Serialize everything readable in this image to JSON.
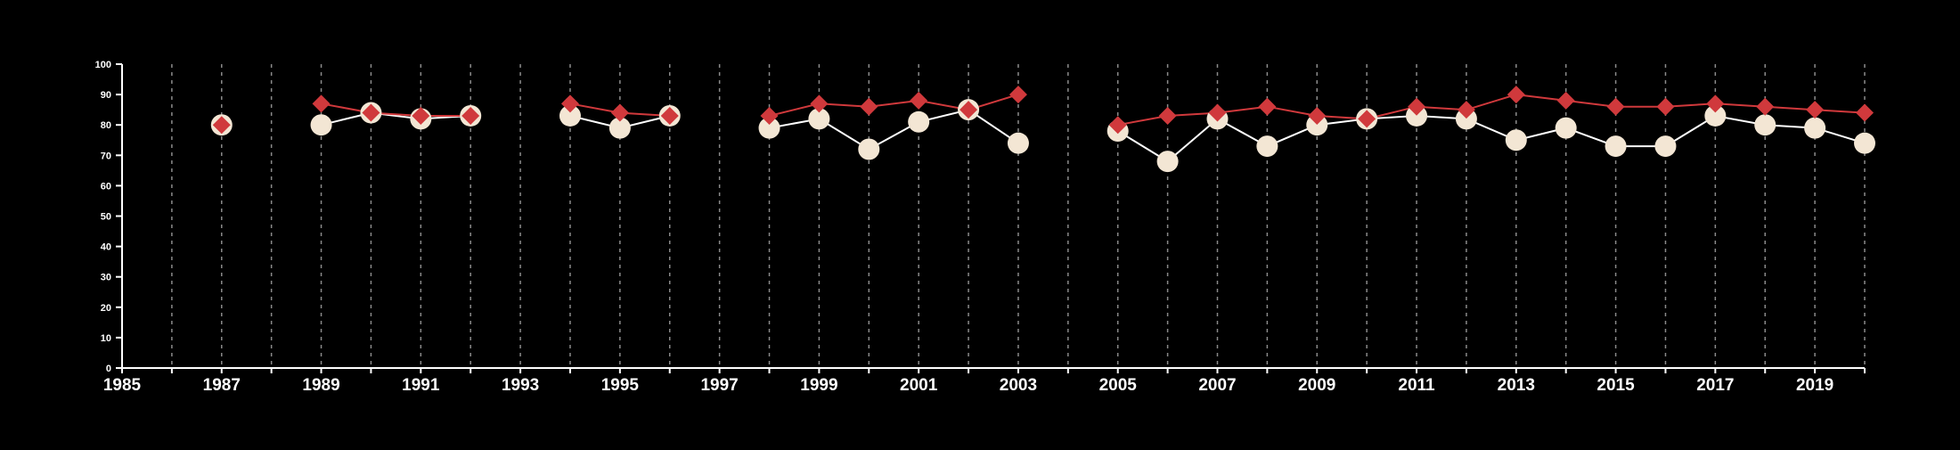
{
  "chart_data": {
    "type": "line",
    "title": "",
    "xlabel": "",
    "ylabel": "",
    "xlim": [
      1985,
      2020
    ],
    "ylim": [
      0,
      100
    ],
    "x_ticks": [
      1985,
      1987,
      1989,
      1991,
      1993,
      1995,
      1997,
      1999,
      2001,
      2003,
      2005,
      2007,
      2009,
      2011,
      2013,
      2015,
      2017,
      2019
    ],
    "y_ticks": [
      0,
      10,
      20,
      30,
      40,
      50,
      60,
      70,
      80,
      90,
      100
    ],
    "grid": "vertical dashed lines at every year",
    "legend": "none",
    "series": [
      {
        "marker": "circle",
        "color": "#f3e6d4",
        "line_color": "#ffffff",
        "points": [
          [
            1987,
            80
          ],
          [
            1989,
            80
          ],
          [
            1990,
            84
          ],
          [
            1991,
            82
          ],
          [
            1992,
            83
          ],
          [
            1994,
            83
          ],
          [
            1995,
            79
          ],
          [
            1996,
            83
          ],
          [
            1998,
            79
          ],
          [
            1999,
            82
          ],
          [
            2000,
            72
          ],
          [
            2001,
            81
          ],
          [
            2002,
            85
          ],
          [
            2003,
            74
          ],
          [
            2005,
            78
          ],
          [
            2006,
            68
          ],
          [
            2007,
            82
          ],
          [
            2008,
            73
          ],
          [
            2009,
            80
          ],
          [
            2010,
            82
          ],
          [
            2011,
            83
          ],
          [
            2012,
            82
          ],
          [
            2013,
            75
          ],
          [
            2014,
            79
          ],
          [
            2015,
            73
          ],
          [
            2016,
            73
          ],
          [
            2017,
            83
          ],
          [
            2018,
            80
          ],
          [
            2019,
            79
          ],
          [
            2020,
            74
          ]
        ]
      },
      {
        "marker": "diamond",
        "color": "#d0393c",
        "line_color": "#d0393c",
        "points": [
          [
            1987,
            80
          ],
          [
            1989,
            87
          ],
          [
            1990,
            84
          ],
          [
            1991,
            83
          ],
          [
            1992,
            83
          ],
          [
            1994,
            87
          ],
          [
            1995,
            84
          ],
          [
            1996,
            83
          ],
          [
            1998,
            83
          ],
          [
            1999,
            87
          ],
          [
            2000,
            86
          ],
          [
            2001,
            88
          ],
          [
            2002,
            85
          ],
          [
            2003,
            90
          ],
          [
            2005,
            80
          ],
          [
            2006,
            83
          ],
          [
            2007,
            84
          ],
          [
            2008,
            86
          ],
          [
            2009,
            83
          ],
          [
            2010,
            82
          ],
          [
            2011,
            86
          ],
          [
            2012,
            85
          ],
          [
            2013,
            90
          ],
          [
            2014,
            88
          ],
          [
            2015,
            86
          ],
          [
            2016,
            86
          ],
          [
            2017,
            87
          ],
          [
            2018,
            86
          ],
          [
            2019,
            85
          ],
          [
            2020,
            84
          ]
        ]
      }
    ]
  }
}
